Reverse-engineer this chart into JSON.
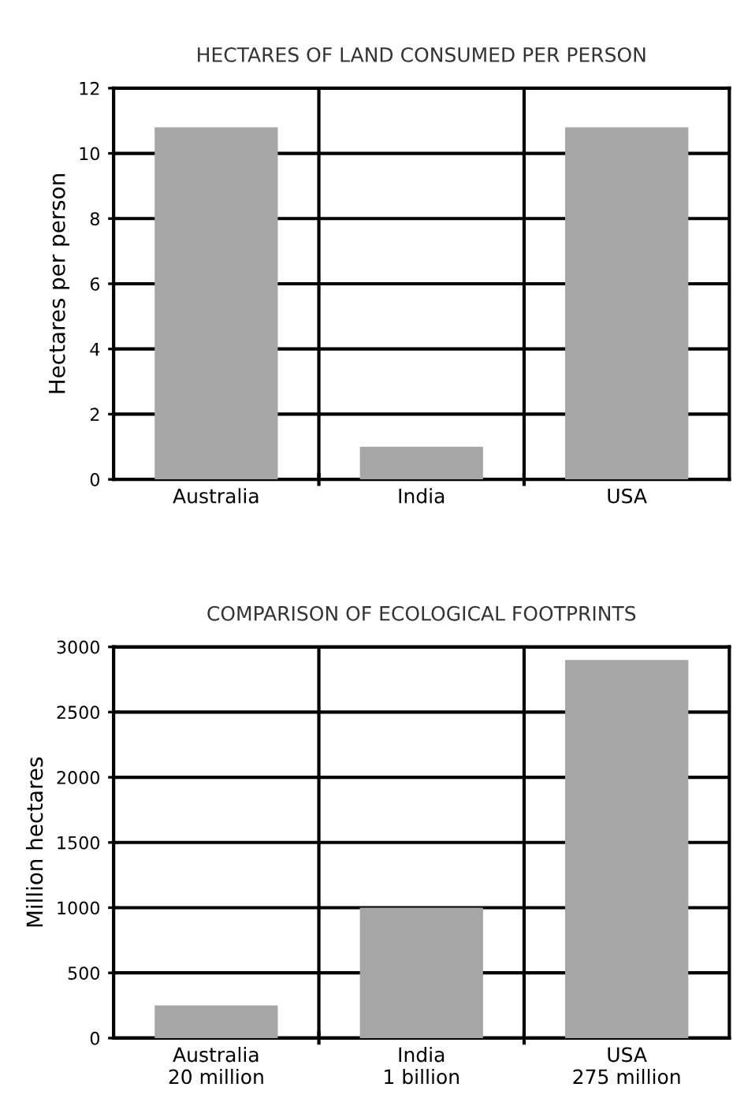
{
  "chart_data": [
    {
      "type": "bar",
      "title": "HECTARES OF LAND CONSUMED PER PERSON",
      "ylabel": "Hectares per person",
      "categories": [
        "Australia",
        "India",
        "USA"
      ],
      "values": [
        10.8,
        1.0,
        10.8
      ],
      "color": "#a6a6a6",
      "ylim": [
        0,
        12
      ],
      "yticks": [
        0,
        2,
        4,
        6,
        8,
        10,
        12
      ],
      "grid": true,
      "legend": false
    },
    {
      "type": "bar",
      "title": "COMPARISON OF ECOLOGICAL FOOTPRINTS",
      "ylabel": "Million hectares",
      "categories": [
        "Australia\n20 million",
        "India\n1 billion",
        "USA\n275 million"
      ],
      "values": [
        250,
        1000,
        2900
      ],
      "color": "#a6a6a6",
      "ylim": [
        0,
        3000
      ],
      "yticks": [
        0,
        500,
        1000,
        1500,
        2000,
        2500,
        3000
      ],
      "grid": true,
      "legend": false
    }
  ]
}
